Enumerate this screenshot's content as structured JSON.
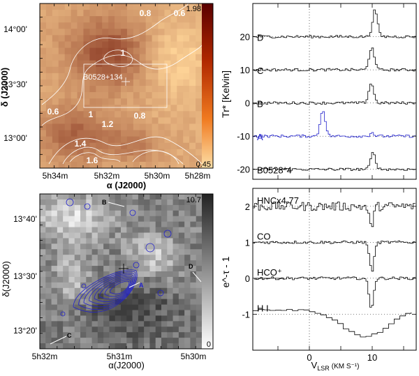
{
  "chart_data": [
    {
      "type": "heatmap",
      "panel": "top-left",
      "xlabel": "α (J2000)",
      "ylabel": "δ (J2000)",
      "x_ticks": [
        "5h34m",
        "5h32m",
        "5h30m",
        "5h28m"
      ],
      "y_ticks": [
        "14°00'",
        "13°30'",
        "13°00'"
      ],
      "colorbar": {
        "max_label": "1.98",
        "min_label": "0.45",
        "min": 0.45,
        "max": 1.98
      },
      "contour_labels": [
        "0.8",
        "0.6",
        "1",
        "0.6",
        "1",
        "0.8",
        "1.2",
        "1.4",
        "1.6"
      ],
      "source_label": "B0528+134",
      "box_color": "#ffffff",
      "contour_color": "#ffffff"
    },
    {
      "type": "heatmap",
      "panel": "bottom-left",
      "xlabel": "α(J2000)",
      "ylabel": "δ(J2000)",
      "x_ticks": [
        "5h32m",
        "5h31m",
        "5h30m"
      ],
      "y_ticks": [
        "13°40'",
        "13°30'",
        "13°20'"
      ],
      "colorbar": {
        "max_label": "10.7",
        "min_label": "0",
        "min": 0,
        "max": 10.7
      },
      "position_labels": [
        "B",
        "A",
        "D",
        "C"
      ],
      "contour_color": "#2222cc"
    },
    {
      "type": "line",
      "panel": "top-right",
      "ylabel": "Tr* [Kelvin]",
      "y_ticks": [
        20,
        10,
        0,
        -10,
        -20
      ],
      "ylim": [
        -23,
        30
      ],
      "xlim": [
        -9,
        17
      ],
      "series": [
        {
          "name": "D",
          "offset": 20,
          "peak_velocity": 10.3,
          "peak_height": 8,
          "color": "#000000"
        },
        {
          "name": "C",
          "offset": 10,
          "peak_velocity": 9.8,
          "peak_height": 7,
          "color": "#000000"
        },
        {
          "name": "B",
          "offset": 0,
          "peak_velocity": 9.7,
          "peak_height": 6,
          "color": "#000000"
        },
        {
          "name": "A",
          "offset": -10,
          "peak_velocity": 2.0,
          "peak_height": 8,
          "color": "#2222cc"
        },
        {
          "name": "B0528*4",
          "offset": -20,
          "peak_velocity": 10.0,
          "peak_height": 5,
          "color": "#000000"
        }
      ]
    },
    {
      "type": "line",
      "panel": "bottom-right",
      "xlabel_main": "V",
      "xlabel_sub": "LSR",
      "xlabel_unit": "(KM S⁻¹)",
      "ylabel": "e^-τ - 1",
      "x_ticks": [
        0,
        10
      ],
      "y_ticks": [
        2,
        1,
        0,
        -1
      ],
      "xlim": [
        -9,
        17
      ],
      "ylim": [
        -2.0,
        2.5
      ],
      "series": [
        {
          "name": "HNCx4.77",
          "offset": 2,
          "absorption_velocity": 9.7,
          "depth": 0.55
        },
        {
          "name": "CO",
          "offset": 1,
          "absorption_velocity": 9.8,
          "depth": 0.8
        },
        {
          "name": "HCO⁺",
          "offset": 0,
          "absorption_velocity": 9.7,
          "depth": 0.85
        },
        {
          "name": "H I",
          "offset": -1,
          "absorption_velocity": 8.5,
          "depth": 0.75
        }
      ]
    }
  ]
}
